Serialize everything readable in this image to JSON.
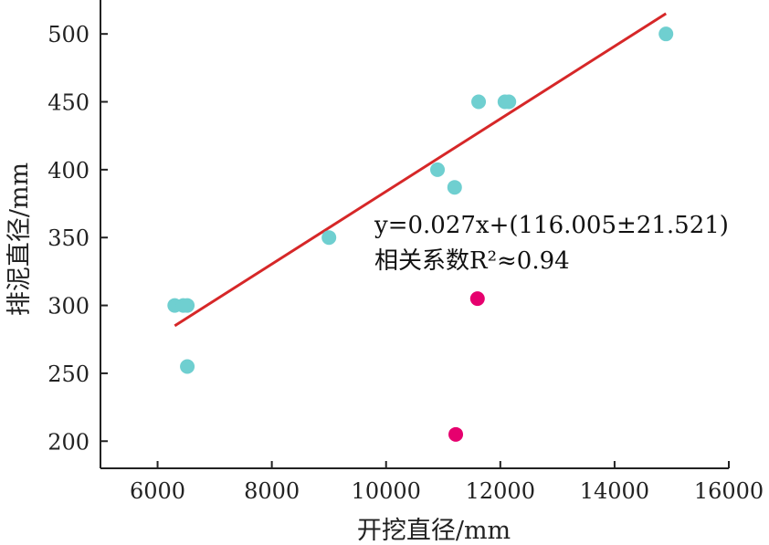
{
  "chart_data": {
    "type": "scatter",
    "xlabel": "开挖直径/mm",
    "ylabel": "排泥直径/mm",
    "xlim": [
      5000,
      16000
    ],
    "ylim": [
      180,
      525
    ],
    "xticks": [
      6000,
      8000,
      10000,
      12000,
      14000,
      16000
    ],
    "yticks": [
      200,
      250,
      300,
      350,
      400,
      450,
      500
    ],
    "grid": false,
    "series": [
      {
        "color": "#6fcfd0",
        "points": [
          {
            "x": 6300,
            "y": 300
          },
          {
            "x": 6450,
            "y": 300
          },
          {
            "x": 6520,
            "y": 300
          },
          {
            "x": 6520,
            "y": 255
          },
          {
            "x": 9000,
            "y": 350
          },
          {
            "x": 10900,
            "y": 400
          },
          {
            "x": 11200,
            "y": 387
          },
          {
            "x": 11620,
            "y": 450
          },
          {
            "x": 12080,
            "y": 450
          },
          {
            "x": 12150,
            "y": 450
          },
          {
            "x": 14900,
            "y": 500
          }
        ]
      },
      {
        "color": "#e6006e",
        "points": [
          {
            "x": 11600,
            "y": 305
          },
          {
            "x": 11220,
            "y": 205
          }
        ]
      }
    ],
    "fit_line": {
      "color": "#d62728",
      "x": [
        6300,
        14900
      ],
      "y": [
        285,
        515
      ]
    },
    "annotations": {
      "equation": "y=0.027x+(116.005±21.521)",
      "r2": "相关系数R²≈0.94"
    }
  }
}
